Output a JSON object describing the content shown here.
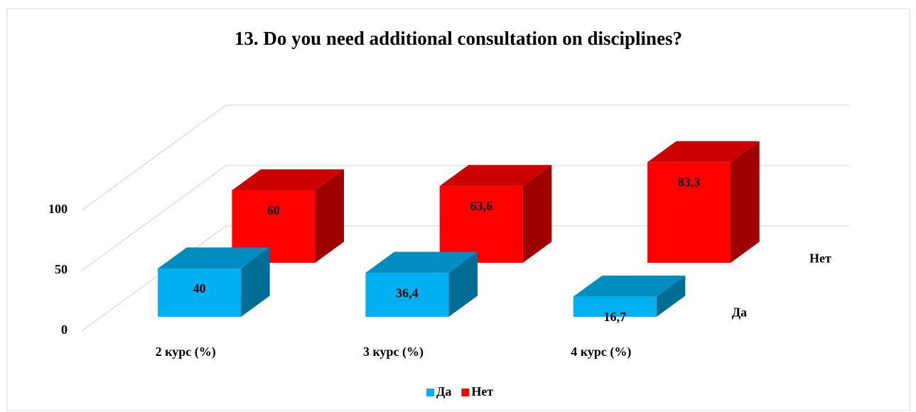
{
  "chart_data": {
    "type": "bar3d",
    "title": "13. Do you need additional consultation on disciplines?",
    "categories": [
      "2 курс (%)",
      "3 курс (%)",
      "4 курс (%)"
    ],
    "series": [
      {
        "name": "Да",
        "color": "#00b0f0",
        "values": [
          40,
          36.4,
          16.7
        ],
        "value_labels": [
          "40",
          "36,4",
          "16,7"
        ]
      },
      {
        "name": "Нет",
        "color": "#ff0000",
        "values": [
          60,
          63.6,
          83.3
        ],
        "value_labels": [
          "60",
          "63,6",
          "83,3"
        ]
      }
    ],
    "ylim": [
      0,
      100
    ],
    "yticks": [
      0,
      50,
      100
    ],
    "grid": true,
    "legend": "bottom"
  }
}
